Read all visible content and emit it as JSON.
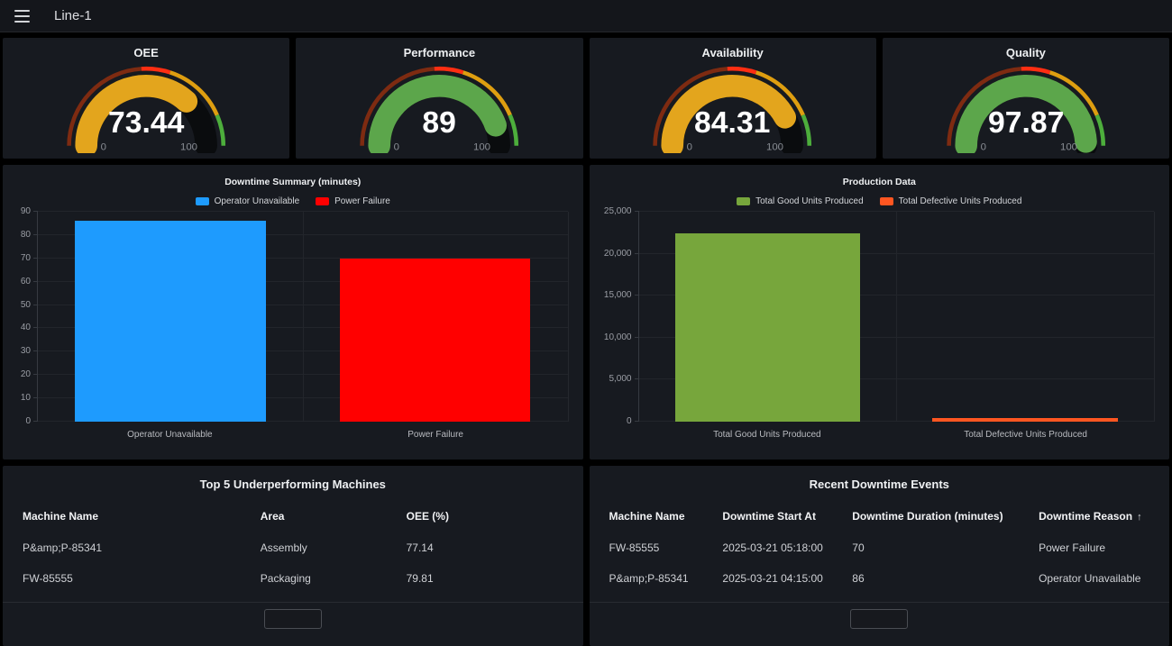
{
  "topbar": {
    "title": "Line-1"
  },
  "colors": {
    "page_bg": "#000000",
    "panel_bg": "#171A20",
    "gauge_orange": "#E3A51D",
    "gauge_green": "#5CA64B",
    "bar_blue": "#1E9BFE",
    "bar_red": "#FF0000",
    "bar_green": "#77A63C",
    "bar_orange": "#FF5621"
  },
  "gauge_thresholds": [
    {
      "to": 48,
      "color": "#7E2B11"
    },
    {
      "to": 60,
      "color": "#FF2E12"
    },
    {
      "to": 87,
      "color": "#DE9E10"
    },
    {
      "to": 100,
      "color": "#4DAE3C"
    }
  ],
  "chart_data": [
    {
      "type": "gauge",
      "title": "OEE",
      "value": 73.44,
      "display": "73.44",
      "min": 0,
      "max": 100,
      "min_label": "0",
      "max_label": "100",
      "bar_color": "#E3A51D"
    },
    {
      "type": "gauge",
      "title": "Performance",
      "value": 89,
      "display": "89",
      "min": 0,
      "max": 100,
      "min_label": "0",
      "max_label": "100",
      "bar_color": "#5CA64B"
    },
    {
      "type": "gauge",
      "title": "Availability",
      "value": 84.31,
      "display": "84.31",
      "min": 0,
      "max": 100,
      "min_label": "0",
      "max_label": "100",
      "bar_color": "#E3A51D"
    },
    {
      "type": "gauge",
      "title": "Quality",
      "value": 97.87,
      "display": "97.87",
      "min": 0,
      "max": 100,
      "min_label": "0",
      "max_label": "100",
      "bar_color": "#5CA64B"
    },
    {
      "type": "bar",
      "title": "Downtime Summary (minutes)",
      "categories": [
        "Operator Unavailable",
        "Power Failure"
      ],
      "values": [
        86,
        70
      ],
      "colors": [
        "#1E9BFE",
        "#FF0000"
      ],
      "legend": [
        "Operator Unavailable",
        "Power Failure"
      ],
      "legend_position": "top",
      "grid": true,
      "ylim": [
        0,
        90
      ],
      "yticks": [
        0,
        10,
        20,
        30,
        40,
        50,
        60,
        70,
        80,
        90
      ],
      "ytick_labels": [
        "0",
        "10",
        "20",
        "30",
        "40",
        "50",
        "60",
        "70",
        "80",
        "90"
      ]
    },
    {
      "type": "bar",
      "title": "Production Data",
      "categories": [
        "Total Good Units Produced",
        "Total Defective Units Produced"
      ],
      "values": [
        22400,
        450
      ],
      "colors": [
        "#77A63C",
        "#FF5621"
      ],
      "legend": [
        "Total Good Units Produced",
        "Total Defective Units Produced"
      ],
      "legend_position": "top",
      "grid": true,
      "ylim": [
        0,
        25000
      ],
      "yticks": [
        0,
        5000,
        10000,
        15000,
        20000,
        25000
      ],
      "ytick_labels": [
        "0",
        "5,000",
        "10,000",
        "15,000",
        "20,000",
        "25,000"
      ]
    }
  ],
  "tables": [
    {
      "title": "Top 5 Underperforming Machines",
      "columns": [
        "Machine Name",
        "Area",
        "OEE (%)"
      ],
      "rows": [
        [
          "P&amp;P-85341",
          "Assembly",
          "77.14"
        ],
        [
          "FW-85555",
          "Packaging",
          "79.81"
        ]
      ]
    },
    {
      "title": "Recent Downtime Events",
      "columns": [
        "Machine Name",
        "Downtime Start At",
        "Downtime Duration (minutes)",
        "Downtime Reason"
      ],
      "sorted_column_index": 3,
      "sort_direction": "asc",
      "sort_icon": "↑",
      "rows": [
        [
          "FW-85555",
          "2025-03-21 05:18:00",
          "70",
          "Power Failure"
        ],
        [
          "P&amp;P-85341",
          "2025-03-21 04:15:00",
          "86",
          "Operator Unavailable"
        ]
      ]
    }
  ]
}
